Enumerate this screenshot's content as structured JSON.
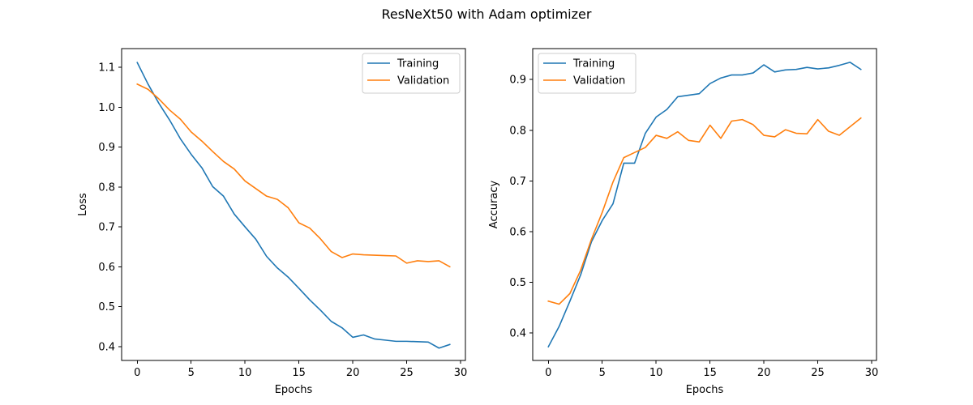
{
  "figure": {
    "title": "ResNeXt50 with Adam optimizer"
  },
  "colors": {
    "training": "#1f77b4",
    "validation": "#ff7f0e"
  },
  "chart_data": [
    {
      "type": "line",
      "title": "",
      "xlabel": "Epochs",
      "ylabel": "Loss",
      "xlim": [
        -1.45,
        30.45
      ],
      "ylim": [
        0.365,
        1.147
      ],
      "xticks": [
        0,
        5,
        10,
        15,
        20,
        25,
        30
      ],
      "yticks": [
        0.4,
        0.5,
        0.6,
        0.7,
        0.8,
        0.9,
        1.0,
        1.1
      ],
      "ytick_labels": [
        "0.4",
        "0.5",
        "0.6",
        "0.7",
        "0.8",
        "0.9",
        "1.0",
        "1.1"
      ],
      "legend_position": "top-right",
      "x": [
        0,
        1,
        2,
        3,
        4,
        5,
        6,
        7,
        8,
        9,
        10,
        11,
        12,
        13,
        14,
        15,
        16,
        17,
        18,
        19,
        20,
        21,
        22,
        23,
        24,
        25,
        26,
        27,
        28,
        29
      ],
      "series": [
        {
          "name": "Training",
          "color": "#1f77b4",
          "values": [
            1.112,
            1.058,
            1.01,
            0.968,
            0.921,
            0.882,
            0.848,
            0.801,
            0.777,
            0.732,
            0.7,
            0.669,
            0.626,
            0.597,
            0.574,
            0.546,
            0.517,
            0.491,
            0.463,
            0.447,
            0.423,
            0.429,
            0.419,
            0.416,
            0.413,
            0.413,
            0.412,
            0.411,
            0.396,
            0.405
          ]
        },
        {
          "name": "Validation",
          "color": "#ff7f0e",
          "values": [
            1.058,
            1.045,
            1.021,
            0.993,
            0.97,
            0.938,
            0.915,
            0.889,
            0.864,
            0.845,
            0.815,
            0.796,
            0.777,
            0.769,
            0.748,
            0.71,
            0.697,
            0.67,
            0.638,
            0.623,
            0.632,
            0.63,
            0.629,
            0.628,
            0.627,
            0.609,
            0.615,
            0.613,
            0.615,
            0.6
          ]
        }
      ]
    },
    {
      "type": "line",
      "title": "",
      "xlabel": "Epochs",
      "ylabel": "Accuracy",
      "xlim": [
        -1.45,
        30.45
      ],
      "ylim": [
        0.346,
        0.961
      ],
      "xticks": [
        0,
        5,
        10,
        15,
        20,
        25,
        30
      ],
      "yticks": [
        0.4,
        0.5,
        0.6,
        0.7,
        0.8,
        0.9
      ],
      "ytick_labels": [
        "0.4",
        "0.5",
        "0.6",
        "0.7",
        "0.8",
        "0.9"
      ],
      "legend_position": "top-left",
      "x": [
        0,
        1,
        2,
        3,
        4,
        5,
        6,
        7,
        8,
        9,
        10,
        11,
        12,
        13,
        14,
        15,
        16,
        17,
        18,
        19,
        20,
        21,
        22,
        23,
        24,
        25,
        26,
        27,
        28,
        29
      ],
      "series": [
        {
          "name": "Training",
          "color": "#1f77b4",
          "values": [
            0.373,
            0.413,
            0.463,
            0.515,
            0.58,
            0.622,
            0.655,
            0.735,
            0.735,
            0.794,
            0.826,
            0.841,
            0.866,
            0.869,
            0.872,
            0.892,
            0.903,
            0.909,
            0.909,
            0.913,
            0.929,
            0.915,
            0.919,
            0.92,
            0.924,
            0.921,
            0.923,
            0.928,
            0.934,
            0.92
          ]
        },
        {
          "name": "Validation",
          "color": "#ff7f0e",
          "values": [
            0.463,
            0.457,
            0.478,
            0.524,
            0.585,
            0.638,
            0.698,
            0.746,
            0.756,
            0.766,
            0.79,
            0.784,
            0.797,
            0.78,
            0.777,
            0.81,
            0.784,
            0.818,
            0.821,
            0.811,
            0.79,
            0.787,
            0.801,
            0.794,
            0.793,
            0.821,
            0.798,
            0.79,
            0.807,
            0.824
          ]
        }
      ]
    }
  ]
}
